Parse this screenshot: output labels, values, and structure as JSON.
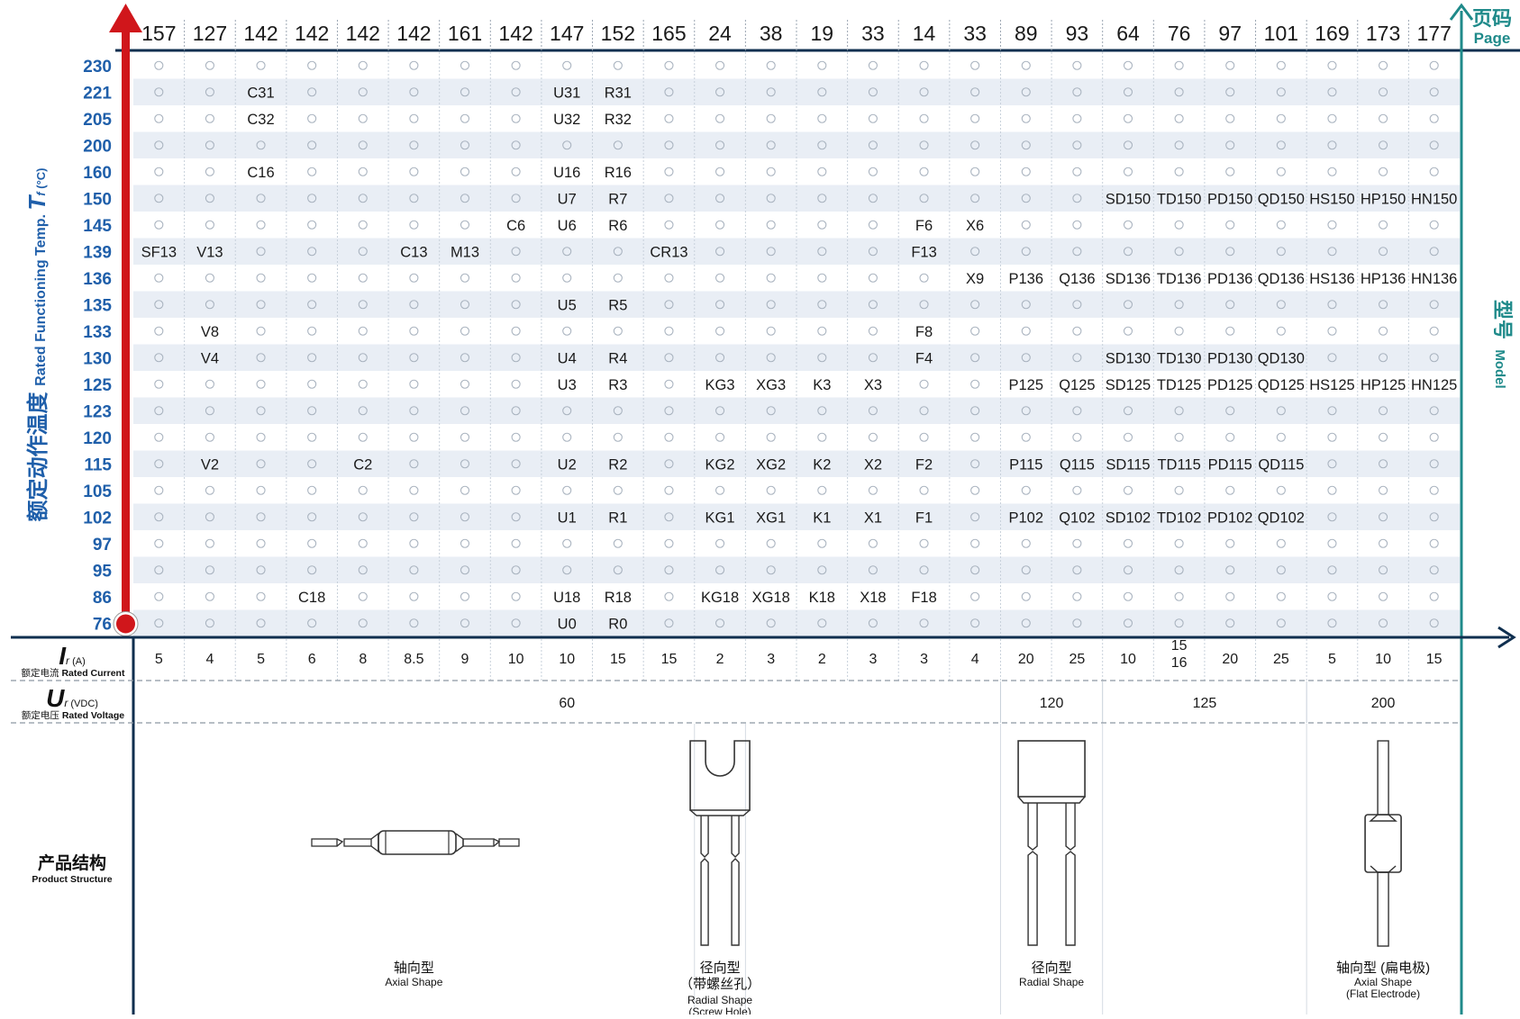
{
  "header": {
    "pages": [
      "157",
      "127",
      "142",
      "142",
      "142",
      "142",
      "161",
      "142",
      "147",
      "152",
      "165",
      "24",
      "38",
      "19",
      "33",
      "14",
      "33",
      "89",
      "93",
      "64",
      "76",
      "97",
      "101",
      "169",
      "173",
      "177"
    ],
    "page_label_cn": "页码",
    "page_label_en": "Page"
  },
  "right_axis": {
    "model_cn": "型号",
    "model_en": "Model"
  },
  "temp_axis": {
    "label_cn": "额定动作温度",
    "label_en": "Rated Functioning Temp.",
    "symbol": "T",
    "subscript": "f",
    "unit": "(°C)",
    "temps": [
      "230",
      "221",
      "205",
      "200",
      "160",
      "150",
      "145",
      "139",
      "136",
      "135",
      "133",
      "130",
      "125",
      "123",
      "120",
      "115",
      "105",
      "102",
      "97",
      "95",
      "86",
      "76"
    ]
  },
  "grid": {
    "empty_marker": "○",
    "cells": [
      [
        "",
        "",
        "",
        "",
        "",
        "",
        "",
        "",
        "",
        "",
        "",
        "",
        "",
        "",
        "",
        "",
        "",
        "",
        "",
        "",
        "",
        "",
        "",
        "",
        "",
        ""
      ],
      [
        "",
        "",
        "C31",
        "",
        "",
        "",
        "",
        "",
        "U31",
        "R31",
        "",
        "",
        "",
        "",
        "",
        "",
        "",
        "",
        "",
        "",
        "",
        "",
        "",
        "",
        "",
        ""
      ],
      [
        "",
        "",
        "C32",
        "",
        "",
        "",
        "",
        "",
        "U32",
        "R32",
        "",
        "",
        "",
        "",
        "",
        "",
        "",
        "",
        "",
        "",
        "",
        "",
        "",
        "",
        "",
        ""
      ],
      [
        "",
        "",
        "",
        "",
        "",
        "",
        "",
        "",
        "",
        "",
        "",
        "",
        "",
        "",
        "",
        "",
        "",
        "",
        "",
        "",
        "",
        "",
        "",
        "",
        "",
        ""
      ],
      [
        "",
        "",
        "C16",
        "",
        "",
        "",
        "",
        "",
        "U16",
        "R16",
        "",
        "",
        "",
        "",
        "",
        "",
        "",
        "",
        "",
        "",
        "",
        "",
        "",
        "",
        "",
        ""
      ],
      [
        "",
        "",
        "",
        "",
        "",
        "",
        "",
        "",
        "U7",
        "R7",
        "",
        "",
        "",
        "",
        "",
        "",
        "",
        "",
        "",
        "SD150",
        "TD150",
        "PD150",
        "QD150",
        "HS150",
        "HP150",
        "HN150"
      ],
      [
        "",
        "",
        "",
        "",
        "",
        "",
        "",
        "C6",
        "U6",
        "R6",
        "",
        "",
        "",
        "",
        "",
        "F6",
        "X6",
        "",
        "",
        "",
        "",
        "",
        "",
        "",
        "",
        ""
      ],
      [
        "SF13",
        "V13",
        "",
        "",
        "",
        "C13",
        "M13",
        "",
        "",
        "",
        "CR13",
        "",
        "",
        "",
        "",
        "F13",
        "",
        "",
        "",
        "",
        "",
        "",
        "",
        "",
        "",
        ""
      ],
      [
        "",
        "",
        "",
        "",
        "",
        "",
        "",
        "",
        "",
        "",
        "",
        "",
        "",
        "",
        "",
        "",
        "X9",
        "P136",
        "Q136",
        "SD136",
        "TD136",
        "PD136",
        "QD136",
        "HS136",
        "HP136",
        "HN136"
      ],
      [
        "",
        "",
        "",
        "",
        "",
        "",
        "",
        "",
        "U5",
        "R5",
        "",
        "",
        "",
        "",
        "",
        "",
        "",
        "",
        "",
        "",
        "",
        "",
        "",
        "",
        "",
        ""
      ],
      [
        "",
        "V8",
        "",
        "",
        "",
        "",
        "",
        "",
        "",
        "",
        "",
        "",
        "",
        "",
        "",
        "F8",
        "",
        "",
        "",
        "",
        "",
        "",
        "",
        "",
        "",
        ""
      ],
      [
        "",
        "V4",
        "",
        "",
        "",
        "",
        "",
        "",
        "U4",
        "R4",
        "",
        "",
        "",
        "",
        "",
        "F4",
        "",
        "",
        "",
        "SD130",
        "TD130",
        "PD130",
        "QD130",
        "",
        "",
        ""
      ],
      [
        "",
        "",
        "",
        "",
        "",
        "",
        "",
        "",
        "U3",
        "R3",
        "",
        "KG3",
        "XG3",
        "K3",
        "X3",
        "",
        "",
        "P125",
        "Q125",
        "SD125",
        "TD125",
        "PD125",
        "QD125",
        "HS125",
        "HP125",
        "HN125"
      ],
      [
        "",
        "",
        "",
        "",
        "",
        "",
        "",
        "",
        "",
        "",
        "",
        "",
        "",
        "",
        "",
        "",
        "",
        "",
        "",
        "",
        "",
        "",
        "",
        "",
        "",
        ""
      ],
      [
        "",
        "",
        "",
        "",
        "",
        "",
        "",
        "",
        "",
        "",
        "",
        "",
        "",
        "",
        "",
        "",
        "",
        "",
        "",
        "",
        "",
        "",
        "",
        "",
        "",
        ""
      ],
      [
        "",
        "V2",
        "",
        "",
        "C2",
        "",
        "",
        "",
        "U2",
        "R2",
        "",
        "KG2",
        "XG2",
        "K2",
        "X2",
        "F2",
        "",
        "P115",
        "Q115",
        "SD115",
        "TD115",
        "PD115",
        "QD115",
        "",
        "",
        ""
      ],
      [
        "",
        "",
        "",
        "",
        "",
        "",
        "",
        "",
        "",
        "",
        "",
        "",
        "",
        "",
        "",
        "",
        "",
        "",
        "",
        "",
        "",
        "",
        "",
        "",
        "",
        ""
      ],
      [
        "",
        "",
        "",
        "",
        "",
        "",
        "",
        "",
        "U1",
        "R1",
        "",
        "KG1",
        "XG1",
        "K1",
        "X1",
        "F1",
        "",
        "P102",
        "Q102",
        "SD102",
        "TD102",
        "PD102",
        "QD102",
        "",
        "",
        ""
      ],
      [
        "",
        "",
        "",
        "",
        "",
        "",
        "",
        "",
        "",
        "",
        "",
        "",
        "",
        "",
        "",
        "",
        "",
        "",
        "",
        "",
        "",
        "",
        "",
        "",
        "",
        ""
      ],
      [
        "",
        "",
        "",
        "",
        "",
        "",
        "",
        "",
        "",
        "",
        "",
        "",
        "",
        "",
        "",
        "",
        "",
        "",
        "",
        "",
        "",
        "",
        "",
        "",
        "",
        ""
      ],
      [
        "",
        "",
        "",
        "C18",
        "",
        "",
        "",
        "",
        "U18",
        "R18",
        "",
        "KG18",
        "XG18",
        "K18",
        "X18",
        "F18",
        "",
        "",
        "",
        "",
        "",
        "",
        "",
        "",
        "",
        ""
      ],
      [
        "",
        "",
        "",
        "",
        "",
        "",
        "",
        "",
        "U0",
        "R0",
        "",
        "",
        "",
        "",
        "",
        "",
        "",
        "",
        "",
        "",
        "",
        "",
        "",
        "",
        "",
        ""
      ]
    ]
  },
  "current": {
    "symbol": "I",
    "subscript": "r",
    "unit": "(A)",
    "label_cn": "额定电流",
    "label_en": "Rated Current",
    "values": [
      "5",
      "4",
      "5",
      "6",
      "8",
      "8.5",
      "9",
      "10",
      "10",
      "15",
      "15",
      "2",
      "3",
      "2",
      "3",
      "3",
      "4",
      "20",
      "25",
      "10",
      "15\n16",
      "20",
      "25",
      "5",
      "10",
      "15"
    ]
  },
  "voltage": {
    "symbol": "U",
    "subscript": "r",
    "unit": "(VDC)",
    "label_cn": "额定电压",
    "label_en": "Rated Voltage",
    "groups": [
      {
        "value": "60",
        "start": 0,
        "end": 16
      },
      {
        "value": "120",
        "start": 17,
        "end": 18
      },
      {
        "value": "125",
        "start": 19,
        "end": 22
      },
      {
        "value": "200",
        "start": 23,
        "end": 25
      }
    ]
  },
  "structure": {
    "label_cn": "产品结构",
    "label_en": "Product Structure",
    "groups": [
      {
        "key": "axial",
        "start": 0,
        "end": 10,
        "cn": "轴向型",
        "en": "Axial Shape",
        "cn2": "",
        "en2": ""
      },
      {
        "key": "radial-screw",
        "start": 11,
        "end": 11,
        "cn": "径向型",
        "cn2": "（带螺丝孔）",
        "en": "Radial Shape",
        "en2": "(Screw Hole)"
      },
      {
        "key": "radial",
        "start": 17,
        "end": 18,
        "cn": "径向型",
        "en": "Radial Shape",
        "cn2": "",
        "en2": ""
      },
      {
        "key": "axial-flat",
        "start": 23,
        "end": 25,
        "cn": "轴向型 (扁电极)",
        "en": "Axial Shape",
        "cn2": "",
        "en2": "(Flat Electrode)"
      }
    ]
  },
  "colors": {
    "navy": "#0f2f4f",
    "teal": "#1f8a8a",
    "blue_label": "#1f5faa",
    "red_arrow": "#d0161b",
    "row_stripe": "#e9eef5",
    "marker": "#a9b3bf"
  }
}
